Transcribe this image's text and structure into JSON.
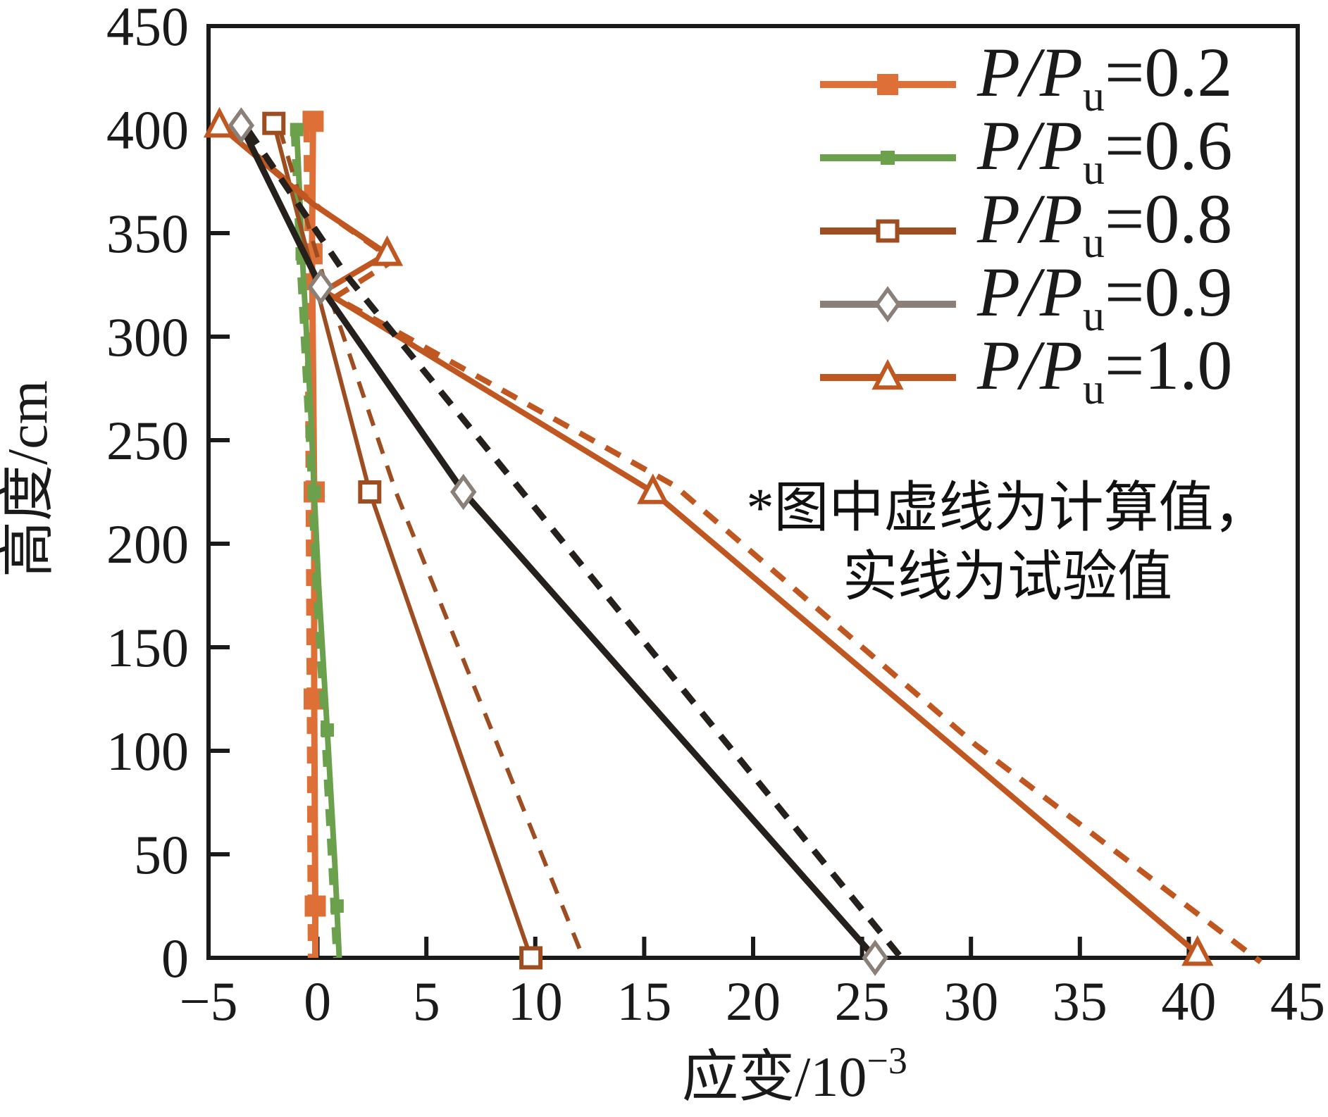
{
  "figure": {
    "background": "#ffffff",
    "frame_color": "#1a1a1a"
  },
  "axes": {
    "x": {
      "label_main": "应变/10",
      "label_sup": "−3",
      "min": -5,
      "max": 45,
      "tick_values": [
        -5,
        0,
        5,
        10,
        15,
        20,
        25,
        30,
        35,
        40,
        45
      ],
      "tick_labels": [
        "−5",
        "0",
        "5",
        "10",
        "15",
        "20",
        "25",
        "30",
        "35",
        "40",
        "45"
      ]
    },
    "y": {
      "label": "高度/cm",
      "min": 0,
      "max": 450,
      "tick_values": [
        0,
        50,
        100,
        150,
        200,
        250,
        300,
        350,
        400,
        450
      ],
      "tick_labels": [
        "0",
        "50",
        "100",
        "150",
        "200",
        "250",
        "300",
        "350",
        "400",
        "450"
      ]
    }
  },
  "legend": {
    "items": [
      {
        "p": "P/P",
        "sub": "u",
        "eq": "=0.2"
      },
      {
        "p": "P/P",
        "sub": "u",
        "eq": "=0.6"
      },
      {
        "p": "P/P",
        "sub": "u",
        "eq": "=0.8"
      },
      {
        "p": "P/P",
        "sub": "u",
        "eq": "=0.9"
      },
      {
        "p": "P/P",
        "sub": "u",
        "eq": "=1.0"
      }
    ]
  },
  "note": {
    "line1": "*图中虚线为计算值，",
    "line2": "实线为试验值"
  },
  "chart_data": {
    "type": "line",
    "title": "",
    "xlabel": "应变/10−3",
    "ylabel": "高度/cm",
    "xlim": [
      -5,
      45
    ],
    "ylim": [
      0,
      450
    ],
    "grid": false,
    "legend_position": "upper right",
    "line_meaning": {
      "solid": "试验值 (test)",
      "dashed": "计算值 (calculated)"
    },
    "series": [
      {
        "name": "P/Pu=0.2",
        "color": "#DE7037",
        "line_color": "#DE7037",
        "legend_color": "#DE7037",
        "marker": "square-filled",
        "marker_color": "#DE7037",
        "solid": [
          [
            -0.2,
            408
          ],
          [
            -0.25,
            340
          ],
          [
            -0.15,
            225
          ],
          [
            -0.15,
            125
          ],
          [
            -0.1,
            25
          ],
          [
            -0.1,
            0
          ]
        ],
        "markers": [
          [
            -0.2,
            404
          ],
          [
            -0.25,
            340
          ],
          [
            -0.15,
            225
          ],
          [
            -0.15,
            125
          ],
          [
            -0.1,
            25
          ]
        ],
        "dashed": [
          [
            -0.5,
            402
          ],
          [
            -0.45,
            340
          ],
          [
            -0.4,
            225
          ],
          [
            -0.35,
            125
          ],
          [
            -0.3,
            0
          ]
        ]
      },
      {
        "name": "P/Pu=0.6",
        "color": "#6BA14D",
        "line_color": "#6BA14D",
        "legend_color": "#6BA14D",
        "marker": "square-filled",
        "marker_color": "#6BA14D",
        "solid": [
          [
            -0.95,
            400
          ],
          [
            -0.7,
            340
          ],
          [
            -0.3,
            262
          ],
          [
            -0.15,
            225
          ],
          [
            0.05,
            181
          ],
          [
            0.45,
            110
          ],
          [
            0.8,
            45
          ],
          [
            1.0,
            0
          ]
        ],
        "markers": [
          [
            -0.95,
            400
          ],
          [
            -0.7,
            340
          ],
          [
            -0.15,
            225
          ],
          [
            0.45,
            110
          ],
          [
            0.9,
            25
          ]
        ],
        "dashed": [
          [
            -1.1,
            400
          ],
          [
            -0.85,
            340
          ],
          [
            -0.45,
            262
          ],
          [
            -0.3,
            225
          ],
          [
            -0.1,
            181
          ],
          [
            0.3,
            110
          ],
          [
            0.85,
            0
          ]
        ]
      },
      {
        "name": "P/Pu=0.8",
        "color": "#9D4D20",
        "line_color": "#9D4D20",
        "legend_color": "#9D4D20",
        "marker": "square-open",
        "marker_color": "#9D4D20",
        "solid": [
          [
            -2.0,
            403
          ],
          [
            -0.2,
            330
          ],
          [
            2.4,
            225
          ],
          [
            9.8,
            0
          ]
        ],
        "markers": [
          [
            -2.0,
            403
          ],
          [
            2.4,
            225
          ],
          [
            9.8,
            0
          ]
        ],
        "dashed": [
          [
            -1.75,
            401
          ],
          [
            0.3,
            328
          ],
          [
            3.6,
            225
          ],
          [
            12.2,
            0
          ]
        ]
      },
      {
        "name": "P/Pu=0.9",
        "color": "#8A8077",
        "line_color": "#25201C",
        "legend_color": "#8A8077",
        "marker": "diamond-open",
        "marker_color": "#8A8077",
        "solid": [
          [
            -3.5,
            402
          ],
          [
            0.15,
            324
          ],
          [
            6.7,
            225
          ],
          [
            25.6,
            0
          ]
        ],
        "markers": [
          [
            -3.5,
            402
          ],
          [
            0.15,
            324
          ],
          [
            6.7,
            225
          ],
          [
            25.6,
            0
          ]
        ],
        "dashed": [
          [
            -3.2,
            400
          ],
          [
            1.3,
            330
          ],
          [
            9.4,
            225
          ],
          [
            26.8,
            0
          ]
        ]
      },
      {
        "name": "P/Pu=1.0",
        "color": "#C05721",
        "line_color": "#C05721",
        "legend_color": "#C05721",
        "marker": "triangle-open",
        "marker_color": "#C05721",
        "solid": [
          [
            -4.5,
            402
          ],
          [
            -0.2,
            364
          ],
          [
            3.2,
            340
          ],
          [
            0.3,
            322
          ],
          [
            15.4,
            225
          ],
          [
            40.4,
            2
          ]
        ],
        "markers": [
          [
            -4.5,
            402
          ],
          [
            3.2,
            340
          ],
          [
            15.4,
            225
          ],
          [
            40.4,
            2
          ]
        ],
        "dashed": [
          [
            -4.2,
            400
          ],
          [
            0.1,
            362
          ],
          [
            3.5,
            337
          ],
          [
            0.8,
            319
          ],
          [
            16.4,
            228
          ],
          [
            30.2,
            103
          ],
          [
            43.3,
            -2
          ]
        ]
      }
    ]
  }
}
